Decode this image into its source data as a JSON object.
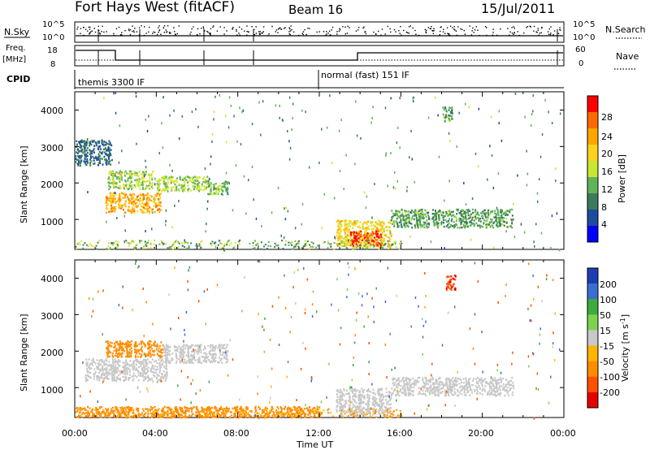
{
  "header": {
    "title": "Fort Hays West (fitACF)",
    "beam": "Beam 16",
    "date": "15/Jul/2011"
  },
  "top_panels": {
    "nsky_label": "N.Sky",
    "nsearch_label": "N.Search",
    "nsky_ticks": [
      "10^5",
      "10^0"
    ],
    "nsearch_ticks": [
      "10^5",
      "10^0"
    ],
    "freq_label_1": "Freq.",
    "freq_label_2": "[MHz]",
    "freq_ticks": [
      "18",
      "8"
    ],
    "nave_label": "Nave",
    "nave_ticks": [
      "60",
      "0"
    ],
    "cpid_label": "CPID",
    "cpid_modes": [
      {
        "label": "themis 3300 IF",
        "start_hour": 0
      },
      {
        "label": "normal (fast) 151 IF",
        "start_hour": 12
      }
    ]
  },
  "axes": {
    "xlabel": "Time UT",
    "x_ticks": [
      "00:00",
      "04:00",
      "08:00",
      "12:00",
      "16:00",
      "20:00",
      "00:00"
    ],
    "xlim_hours": [
      0,
      24
    ],
    "ylabel": "Slant Range [km]",
    "y_ticks": [
      "1000",
      "2000",
      "3000",
      "4000"
    ],
    "ylim_km": [
      180,
      4500
    ]
  },
  "colorbars": {
    "power": {
      "label": "Power [dB]",
      "ticks": [
        "28",
        "24",
        "20",
        "16",
        "12",
        "8",
        "4"
      ],
      "colors": [
        "#ff0000",
        "#ff6a00",
        "#ffa500",
        "#ffd21e",
        "#c8e632",
        "#5fb45a",
        "#3c7a5a",
        "#1e4ba0",
        "#0000ff"
      ]
    },
    "velocity": {
      "label": "Velocity [m s-1]",
      "label_main": "Velocity [m s",
      "label_sup": "-1",
      "label_end": "]",
      "ticks": [
        "200",
        "100",
        "50",
        "15",
        "-15",
        "-50",
        "-100",
        "-200"
      ],
      "colors": [
        "#1e3cb4",
        "#3c6ed2",
        "#3caa3c",
        "#7dd250",
        "#c8c8c8",
        "#ffb400",
        "#ff8c00",
        "#ff5000",
        "#e60000"
      ]
    }
  },
  "chart_data": [
    {
      "type": "heatmap",
      "name": "power",
      "title": "Fort Hays West (fitACF)",
      "xlabel": "Time UT",
      "ylabel": "Slant Range [km]",
      "xlim_hours": [
        0,
        24
      ],
      "ylim_km": [
        180,
        4500
      ],
      "value_range_db": [
        0,
        30
      ],
      "regions": [
        {
          "t0": 1.5,
          "t1": 4.2,
          "r0": 1200,
          "r1": 1750,
          "value": 22
        },
        {
          "t0": 1.6,
          "t1": 3.8,
          "r0": 1850,
          "r1": 2350,
          "value": 14
        },
        {
          "t0": 4.0,
          "t1": 6.5,
          "r0": 1800,
          "r1": 2200,
          "value": 14
        },
        {
          "t0": 6.5,
          "t1": 7.5,
          "r0": 1700,
          "r1": 2100,
          "value": 12
        },
        {
          "t0": 12.8,
          "t1": 15.5,
          "r0": 250,
          "r1": 1000,
          "value": 18
        },
        {
          "t0": 13.5,
          "t1": 15.0,
          "r0": 300,
          "r1": 700,
          "value": 28
        },
        {
          "t0": 15.5,
          "t1": 21.5,
          "r0": 800,
          "r1": 1300,
          "value": 10
        },
        {
          "t0": 0.0,
          "t1": 1.8,
          "r0": 2500,
          "r1": 3200,
          "value": 6
        },
        {
          "t0": 18.0,
          "t1": 18.5,
          "r0": 3700,
          "r1": 4100,
          "value": 10
        }
      ]
    },
    {
      "type": "heatmap",
      "name": "velocity",
      "title": "Beam 16",
      "xlabel": "Time UT",
      "ylabel": "Slant Range [km]",
      "xlim_hours": [
        0,
        24
      ],
      "ylim_km": [
        180,
        4500
      ],
      "value_range_ms": [
        -200,
        200
      ],
      "regions": [
        {
          "t0": 0.5,
          "t1": 4.5,
          "r0": 1200,
          "r1": 1800,
          "value": 0
        },
        {
          "t0": 1.5,
          "t1": 4.3,
          "r0": 1850,
          "r1": 2300,
          "value": -60
        },
        {
          "t0": 4.3,
          "t1": 7.5,
          "r0": 1700,
          "r1": 2200,
          "value": 0
        },
        {
          "t0": 12.8,
          "t1": 15.5,
          "r0": 250,
          "r1": 1000,
          "value": 0
        },
        {
          "t0": 15.5,
          "t1": 21.5,
          "r0": 800,
          "r1": 1300,
          "value": 0
        },
        {
          "t0": 18.2,
          "t1": 18.7,
          "r0": 3700,
          "r1": 4100,
          "value": -200
        },
        {
          "t0": 0.0,
          "t1": 12.0,
          "r0": 200,
          "r1": 500,
          "value": -60
        }
      ]
    }
  ]
}
